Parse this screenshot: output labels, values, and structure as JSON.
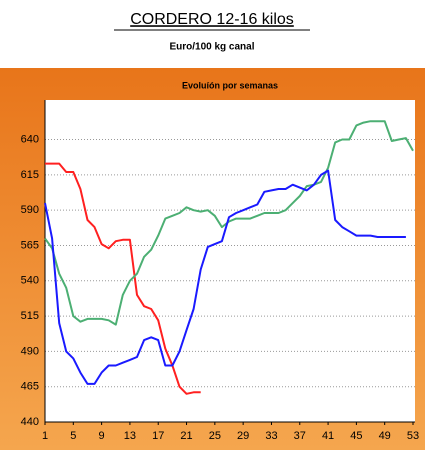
{
  "chart_data": {
    "type": "line",
    "title": "CORDERO 12-16 kilos",
    "subtitle": "Euro/100 kg canal",
    "panel_title": "Evoluíón por semanas",
    "x": [
      1,
      2,
      3,
      4,
      5,
      6,
      7,
      8,
      9,
      10,
      11,
      12,
      13,
      14,
      15,
      16,
      17,
      18,
      19,
      20,
      21,
      22,
      23,
      24,
      25,
      26,
      27,
      28,
      29,
      30,
      31,
      32,
      33,
      34,
      35,
      36,
      37,
      38,
      39,
      40,
      41,
      42,
      43,
      44,
      45,
      46,
      47,
      48,
      49,
      50,
      51,
      52,
      53
    ],
    "series": [
      {
        "color": "#ff2020",
        "values": [
          623,
          623,
          623,
          617,
          617,
          605,
          583,
          578,
          566,
          563,
          568,
          569,
          569,
          530,
          522,
          520,
          512,
          492,
          480,
          465,
          460,
          461,
          461,
          null,
          null,
          null,
          null,
          null,
          null,
          null,
          null,
          null,
          null,
          null,
          null,
          null,
          null,
          null,
          null,
          null,
          null,
          null,
          null,
          null,
          null,
          null,
          null,
          null,
          null,
          null,
          null,
          null,
          null
        ]
      },
      {
        "color": "#4caf73",
        "values": [
          570,
          563,
          545,
          535,
          515,
          511,
          513,
          513,
          513,
          512,
          509,
          530,
          540,
          545,
          557,
          562,
          572,
          584,
          586,
          588,
          592,
          590,
          589,
          590,
          586,
          578,
          582,
          584,
          584,
          584,
          586,
          588,
          588,
          588,
          590,
          595,
          600,
          607,
          608,
          610,
          620,
          638,
          640,
          640,
          650,
          652,
          653,
          653,
          653,
          639,
          640,
          641,
          632
        ]
      },
      {
        "color": "#1a1aff",
        "values": [
          595,
          570,
          510,
          490,
          485,
          475,
          467,
          467,
          475,
          480,
          480,
          482,
          484,
          486,
          498,
          500,
          498,
          480,
          480,
          490,
          505,
          520,
          548,
          564,
          566,
          568,
          585,
          588,
          590,
          592,
          594,
          603,
          604,
          605,
          605,
          608,
          606,
          604,
          608,
          615,
          618,
          583,
          578,
          575,
          572,
          572,
          572,
          571,
          571,
          571,
          571,
          571,
          null
        ]
      }
    ],
    "xlim": [
      1,
      53
    ],
    "xticks": [
      1,
      5,
      9,
      13,
      17,
      21,
      25,
      29,
      33,
      37,
      41,
      45,
      49,
      53
    ],
    "ylim": [
      440,
      668
    ],
    "yticks": [
      440,
      465,
      490,
      515,
      540,
      565,
      590,
      615,
      640
    ],
    "grid": true
  }
}
